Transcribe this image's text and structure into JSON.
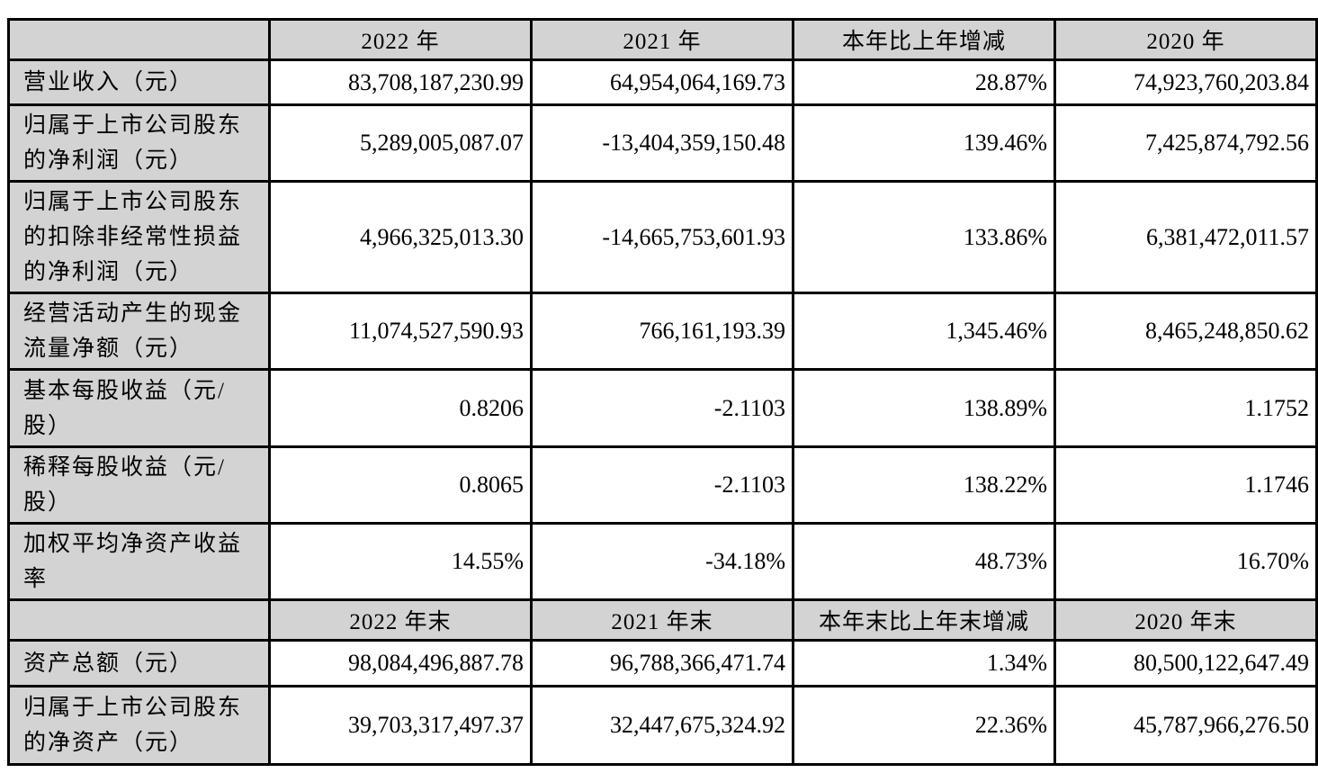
{
  "document": {
    "type": "financial-summary-table",
    "colors": {
      "header_bg": "#d3d3d3",
      "label_bg": "#d3d3d3",
      "border": "#000000",
      "cell_bg": "#ffffff",
      "text": "#000000"
    },
    "sections": [
      {
        "header": {
          "col0": "",
          "cols": [
            "2022 年",
            "2021 年",
            "本年比上年增减",
            "2020 年"
          ]
        },
        "rows": [
          {
            "label": "营业收入（元）",
            "values": [
              "83,708,187,230.99",
              "64,954,064,169.73",
              "28.87%",
              "74,923,760,203.84"
            ]
          },
          {
            "label": "归属于上市公司股东\n的净利润（元）",
            "values": [
              "5,289,005,087.07",
              "-13,404,359,150.48",
              "139.46%",
              "7,425,874,792.56"
            ]
          },
          {
            "label": "归属于上市公司股东\n的扣除非经常性损益\n的净利润（元）",
            "values": [
              "4,966,325,013.30",
              "-14,665,753,601.93",
              "133.86%",
              "6,381,472,011.57"
            ]
          },
          {
            "label": "经营活动产生的现金\n流量净额（元）",
            "values": [
              "11,074,527,590.93",
              "766,161,193.39",
              "1,345.46%",
              "8,465,248,850.62"
            ]
          },
          {
            "label": "基本每股收益（元/\n股）",
            "values": [
              "0.8206",
              "-2.1103",
              "138.89%",
              "1.1752"
            ]
          },
          {
            "label": "稀释每股收益（元/\n股）",
            "values": [
              "0.8065",
              "-2.1103",
              "138.22%",
              "1.1746"
            ]
          },
          {
            "label": "加权平均净资产收益\n率",
            "values": [
              "14.55%",
              "-34.18%",
              "48.73%",
              "16.70%"
            ]
          }
        ]
      },
      {
        "header": {
          "col0": "",
          "cols": [
            "2022 年末",
            "2021 年末",
            "本年末比上年末增减",
            "2020 年末"
          ]
        },
        "rows": [
          {
            "label": "资产总额（元）",
            "values": [
              "98,084,496,887.78",
              "96,788,366,471.74",
              "1.34%",
              "80,500,122,647.49"
            ]
          },
          {
            "label": "归属于上市公司股东\n的净资产（元）",
            "values": [
              "39,703,317,497.37",
              "32,447,675,324.92",
              "22.36%",
              "45,787,966,276.50"
            ]
          }
        ]
      }
    ]
  }
}
